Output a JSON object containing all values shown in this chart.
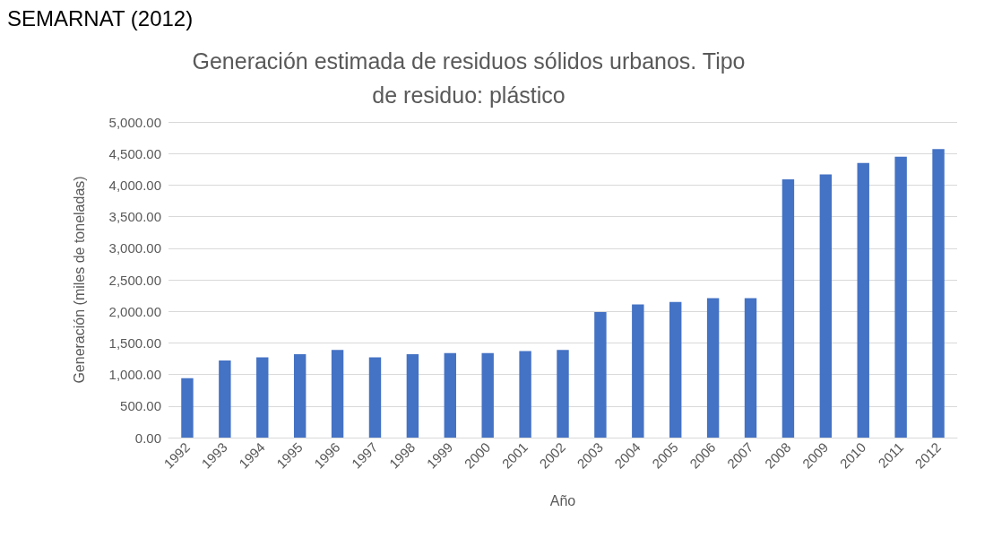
{
  "chart_data": {
    "type": "bar",
    "title": "Generación estimada de residuos sólidos urbanos. Tipo\nde residuo: plástico",
    "xlabel": "Año",
    "ylabel": "Generación (miles de toneladas)",
    "annotations": [
      "SEMARNAT (2012)"
    ],
    "categories": [
      "1992",
      "1993",
      "1994",
      "1995",
      "1996",
      "1997",
      "1998",
      "1999",
      "2000",
      "2001",
      "2002",
      "2003",
      "2004",
      "2005",
      "2006",
      "2007",
      "2008",
      "2009",
      "2010",
      "2011",
      "2012"
    ],
    "values": [
      940,
      1220,
      1270,
      1320,
      1390,
      1270,
      1320,
      1340,
      1340,
      1370,
      1390,
      1990,
      2110,
      2150,
      2210,
      2210,
      4090,
      4170,
      4350,
      4450,
      4570
    ],
    "color": "#4472c4",
    "ylim": [
      0,
      5000
    ],
    "yticks": [
      {
        "value": 0,
        "label": "0.00"
      },
      {
        "value": 500,
        "label": "500.00"
      },
      {
        "value": 1000,
        "label": "1,000.00"
      },
      {
        "value": 1500,
        "label": "1,500.00"
      },
      {
        "value": 2000,
        "label": "2,000.00"
      },
      {
        "value": 2500,
        "label": "2,500.00"
      },
      {
        "value": 3000,
        "label": "3,000.00"
      },
      {
        "value": 3500,
        "label": "3,500.00"
      },
      {
        "value": 4000,
        "label": "4,000.00"
      },
      {
        "value": 4500,
        "label": "4,500.00"
      },
      {
        "value": 5000,
        "label": "5,000.00"
      }
    ],
    "grid": true
  }
}
